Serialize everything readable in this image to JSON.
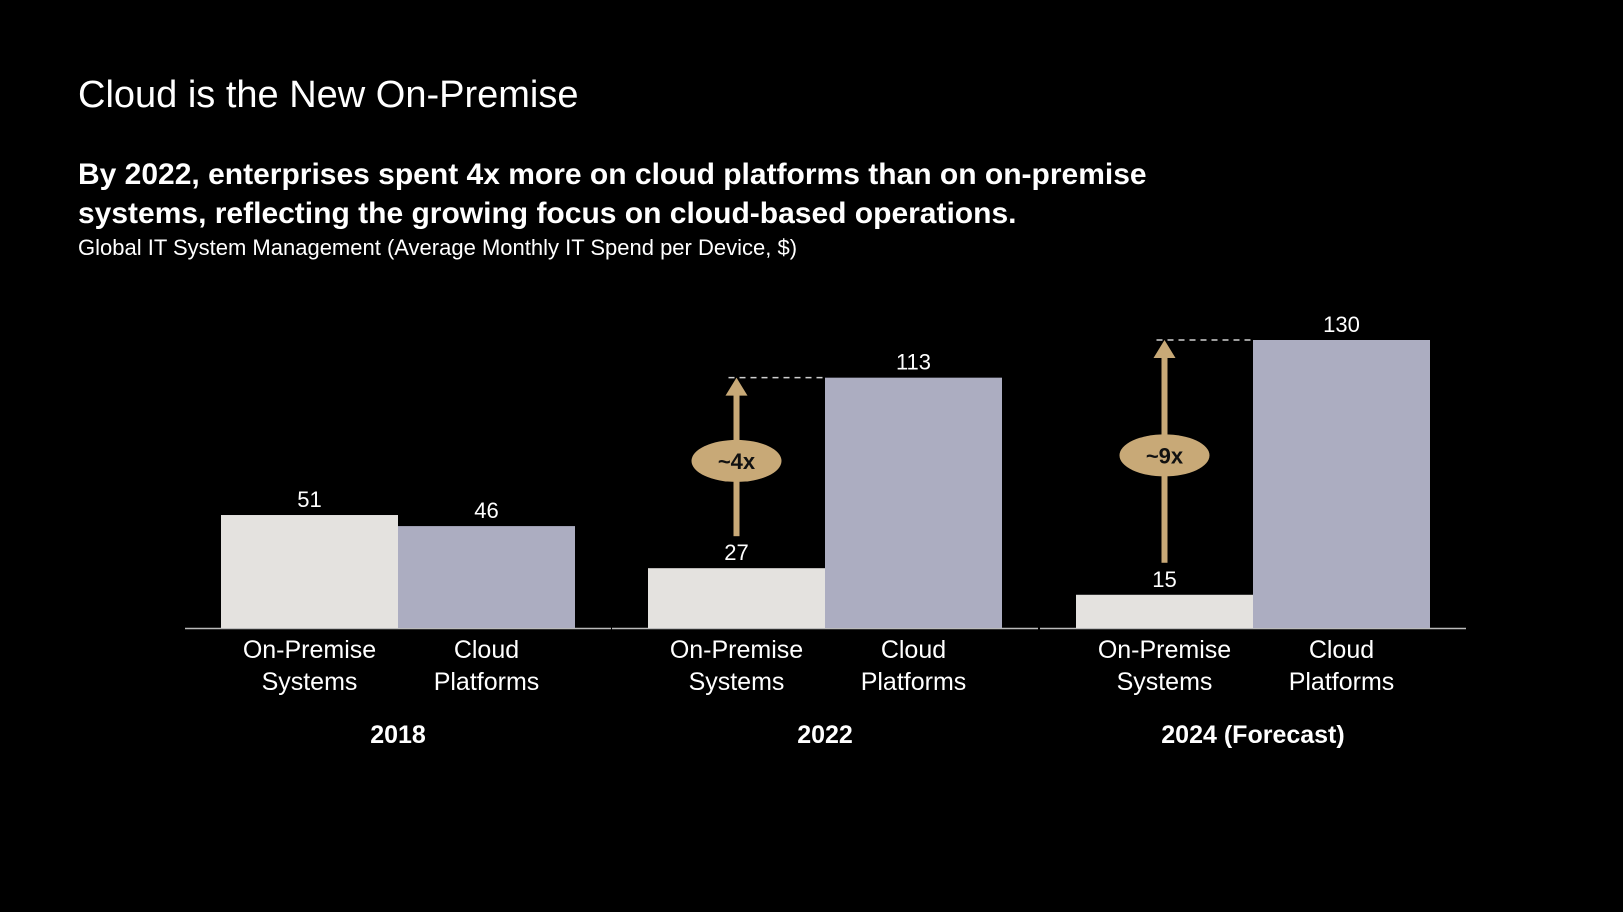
{
  "slide": {
    "title": "Cloud is the New On-Premise",
    "headline": "By 2022, enterprises spent 4x more on cloud platforms than on on-premise systems, reflecting the growing focus on cloud-based operations.",
    "subtitle": "Global IT System Management (Average Monthly IT Spend per Device, $)"
  },
  "chart_data": {
    "type": "bar",
    "title": "",
    "xlabel": "",
    "ylabel": "",
    "ylim": [
      0,
      130
    ],
    "grid": false,
    "legend": "none",
    "series_names": [
      "On-Premise Systems",
      "Cloud Platforms"
    ],
    "groups": [
      {
        "label": "2018",
        "bars": [
          {
            "category": [
              "On-Premise",
              "Systems"
            ],
            "value": 51
          },
          {
            "category": [
              "Cloud",
              "Platforms"
            ],
            "value": 46
          }
        ],
        "multiplier": null
      },
      {
        "label": "2022",
        "bars": [
          {
            "category": [
              "On-Premise",
              "Systems"
            ],
            "value": 27
          },
          {
            "category": [
              "Cloud",
              "Platforms"
            ],
            "value": 113
          }
        ],
        "multiplier": "~4x"
      },
      {
        "label": "2024 (Forecast)",
        "bars": [
          {
            "category": [
              "On-Premise",
              "Systems"
            ],
            "value": 15
          },
          {
            "category": [
              "Cloud",
              "Platforms"
            ],
            "value": 130
          }
        ],
        "multiplier": "~9x"
      }
    ],
    "colors": {
      "on_premise": "#e4e2df",
      "cloud": "#acadc1",
      "annotation": "#c8a977",
      "axis": "#bbbbbb",
      "text": "#ffffff",
      "background": "#000000"
    }
  }
}
